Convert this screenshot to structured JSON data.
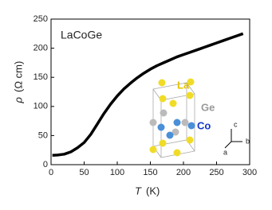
{
  "chart_data": {
    "type": "line",
    "annotation": "LaCoGe",
    "xlabel_symbol": "T",
    "xlabel_unit": "(K)",
    "ylabel_symbol": "ρ",
    "ylabel_unit": "(Ω cm)",
    "x": [
      2,
      10,
      20,
      30,
      40,
      50,
      60,
      70,
      80,
      90,
      100,
      110,
      120,
      130,
      140,
      150,
      160,
      170,
      180,
      190,
      200,
      210,
      220,
      230,
      240,
      250,
      260,
      270,
      280,
      290
    ],
    "series": [
      {
        "color": "#000000",
        "values": [
          16,
          16.5,
          18,
          22,
          29,
          38,
          52,
          70,
          88,
          104,
          118,
          130,
          140,
          149,
          157,
          164,
          170,
          175,
          180,
          185,
          189,
          193,
          197,
          201,
          205,
          209,
          213,
          217,
          221,
          225
        ]
      }
    ],
    "xlim": [
      0,
      300
    ],
    "xticks": [
      0,
      50,
      100,
      150,
      200,
      250,
      300
    ],
    "ylim": [
      0,
      250
    ],
    "yticks": [
      0,
      50,
      100,
      150,
      200,
      250
    ],
    "inset_labels": [
      {
        "text": "La",
        "color": "#e2c400"
      },
      {
        "text": "Ge",
        "color": "#999999"
      },
      {
        "text": "Co",
        "color": "#1438c8"
      }
    ],
    "inset_axes": [
      "c",
      "b",
      "a"
    ]
  }
}
